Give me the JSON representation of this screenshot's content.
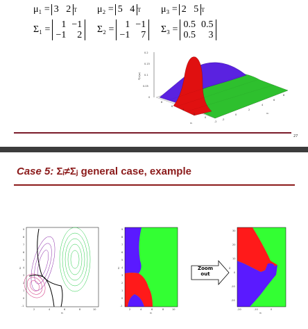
{
  "slide1": {
    "mu1": {
      "label": "μ₁ =",
      "values": "3   2"
    },
    "mu2": {
      "label": "μ₂ =",
      "values": "5   4"
    },
    "mu3": {
      "label": "μ₃ =",
      "values": "2   5"
    },
    "transpose": "T",
    "sigma1": {
      "label": "Σ₁ =",
      "cells": [
        "1",
        "−1",
        "−1",
        "2"
      ]
    },
    "sigma2": {
      "label": "Σ₂ =",
      "cells": [
        "1",
        "−1",
        "−1",
        "7"
      ]
    },
    "sigma3": {
      "label": "Σ₃ =",
      "cells": [
        "0.5",
        "0.5",
        "0.5",
        "3"
      ]
    },
    "plot3d": {
      "zlabel": "P(x|ω)",
      "zticks": [
        "0.2",
        "0.15",
        "0.1",
        "0.05",
        "0"
      ],
      "x1ticks": [
        "8",
        "6",
        "4",
        "2",
        "0",
        "-2"
      ],
      "x2ticks": [
        "-2",
        "0",
        "2",
        "4",
        "6",
        "8"
      ],
      "x1label": "x₁",
      "x2label": "x₂"
    },
    "page_number": "27"
  },
  "slide2": {
    "title_case": "Case 5:",
    "title_rest": " Σᵢ≠Σⱼ general case, example",
    "zoom_label_1": "Zoom",
    "zoom_label_2": "out",
    "panel1": {
      "xticks": [
        "2",
        "4",
        "6",
        "8",
        "10"
      ],
      "yticks": [
        "9",
        "8",
        "7",
        "6",
        "5",
        "4",
        "3",
        "2",
        "1",
        "0",
        "-1"
      ],
      "xlabel": "x₁",
      "ylabel": "x₂"
    },
    "panel2": {
      "xticks": [
        "2",
        "4",
        "6",
        "8",
        "10"
      ],
      "yticks": [
        "9",
        "8",
        "7",
        "6",
        "5",
        "4",
        "3",
        "2",
        "1",
        "0",
        "-1"
      ],
      "xlabel": "x₁",
      "ylabel": "x₂"
    },
    "panel3": {
      "xticks": [
        "-20",
        "-10",
        "0"
      ],
      "yticks": [
        "30",
        "20",
        "10",
        "0",
        "-10",
        "-20"
      ],
      "xlabel": "x₁",
      "ylabel": "x₂"
    }
  },
  "colors": {
    "red": "#ff1a1a",
    "blue": "#5a1aff",
    "green": "#33ff33",
    "maroon": "#8b1a1a"
  }
}
